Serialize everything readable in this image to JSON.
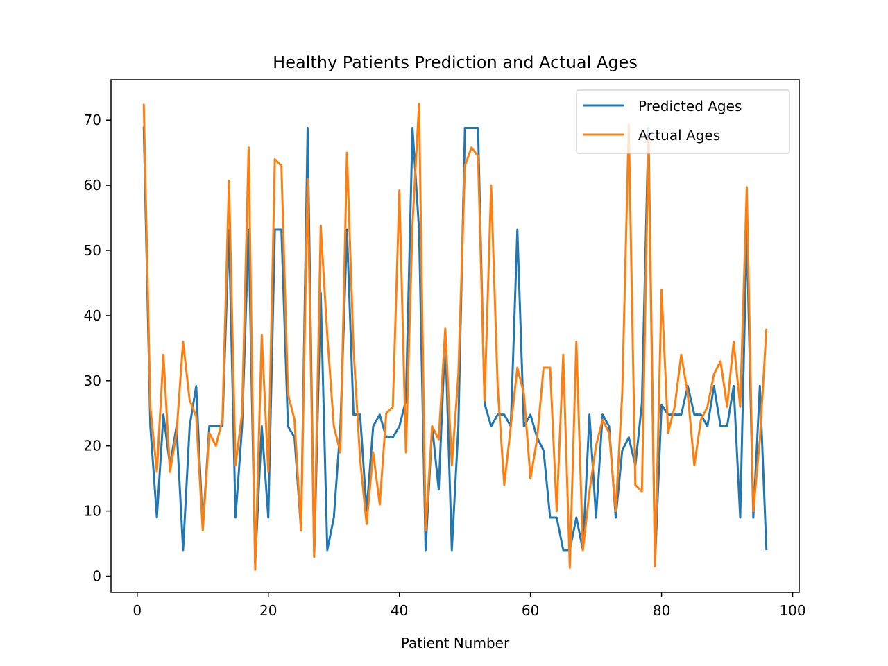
{
  "chart_data": {
    "type": "line",
    "title": "Healthy Patients Prediction and Actual Ages",
    "xlabel": "Patient Number",
    "ylabel": "",
    "xlim": [
      -4,
      101
    ],
    "ylim": [
      -2.5,
      76.2
    ],
    "xticks": [
      0,
      20,
      40,
      60,
      80,
      100
    ],
    "yticks": [
      0,
      10,
      20,
      30,
      40,
      50,
      60,
      70
    ],
    "grid": false,
    "legend_position": "top-right",
    "series": [
      {
        "name": "Predicted Ages",
        "color": "#1f77b4",
        "x": [
          1,
          2,
          3,
          4,
          5,
          6,
          7,
          8,
          9,
          10,
          11,
          12,
          13,
          14,
          15,
          16,
          17,
          18,
          19,
          20,
          21,
          22,
          23,
          24,
          25,
          26,
          27,
          28,
          29,
          30,
          31,
          32,
          33,
          34,
          35,
          36,
          37,
          38,
          39,
          40,
          41,
          42,
          43,
          44,
          45,
          46,
          47,
          48,
          49,
          50,
          51,
          52,
          53,
          54,
          55,
          56,
          57,
          58,
          59,
          60,
          61,
          62,
          63,
          64,
          65,
          66,
          67,
          68,
          69,
          70,
          71,
          72,
          73,
          74,
          75,
          76,
          77,
          78,
          79,
          80,
          81,
          82,
          83,
          84,
          85,
          86,
          87,
          88,
          89,
          90,
          91,
          92,
          93,
          94,
          95,
          96
        ],
        "y": [
          69,
          23,
          9,
          24.8,
          17,
          23,
          4,
          23,
          29.2,
          7.2,
          23,
          23,
          23,
          53.2,
          9,
          23,
          53.2,
          2,
          23,
          9,
          53.2,
          53.2,
          23,
          21.3,
          7,
          68.8,
          3,
          43.5,
          4,
          9,
          23,
          53.2,
          24.8,
          24.8,
          10,
          23,
          24.8,
          21.3,
          21.3,
          23,
          27,
          68.8,
          53.2,
          4,
          23,
          13.3,
          37,
          4,
          23,
          68.8,
          68.8,
          68.8,
          26.5,
          23,
          24.8,
          24.8,
          23,
          53.2,
          23,
          24.8,
          21.3,
          19.3,
          9,
          9,
          4,
          4,
          9,
          4,
          24.8,
          9,
          24.8,
          23,
          9,
          19.3,
          21.3,
          17,
          26.5,
          68.8,
          2,
          26.3,
          24.8,
          24.8,
          24.8,
          29.2,
          24.8,
          24.8,
          23,
          29.2,
          23,
          23,
          29.2,
          9,
          53.2,
          9,
          29.2,
          4
        ]
      },
      {
        "name": "Actual Ages",
        "color": "#ff7f0e",
        "x": [
          1,
          2,
          3,
          4,
          5,
          6,
          7,
          8,
          9,
          10,
          11,
          12,
          13,
          14,
          15,
          16,
          17,
          18,
          19,
          20,
          21,
          22,
          23,
          24,
          25,
          26,
          27,
          28,
          29,
          30,
          31,
          32,
          33,
          34,
          35,
          36,
          37,
          38,
          39,
          40,
          41,
          42,
          43,
          44,
          45,
          46,
          47,
          48,
          49,
          50,
          51,
          52,
          53,
          54,
          55,
          56,
          57,
          58,
          59,
          60,
          61,
          62,
          63,
          64,
          65,
          66,
          67,
          68,
          69,
          70,
          71,
          72,
          73,
          74,
          75,
          76,
          77,
          78,
          79,
          80,
          81,
          82,
          83,
          84,
          85,
          86,
          87,
          88,
          89,
          90,
          91,
          92,
          93,
          94,
          95,
          96
        ],
        "y": [
          72.5,
          26,
          16,
          34,
          16,
          22,
          36,
          27,
          24.5,
          7,
          22,
          20,
          24,
          60.7,
          17,
          25,
          65.8,
          1,
          37,
          16,
          64,
          63,
          28,
          24,
          7,
          61,
          3,
          53.8,
          37,
          23,
          19,
          65,
          35,
          18,
          8,
          19,
          11,
          25,
          26,
          59.2,
          19,
          54,
          72.5,
          7,
          23,
          21,
          38,
          17,
          31,
          63,
          65.8,
          64.5,
          27,
          60,
          29,
          14,
          23,
          32,
          28,
          15,
          21,
          32,
          32,
          10,
          34,
          1.3,
          36,
          4,
          13,
          20,
          24,
          22,
          10,
          28,
          69.3,
          14,
          13,
          67,
          1.5,
          44,
          22,
          26,
          34,
          28,
          17,
          24,
          26,
          31,
          33,
          26,
          36,
          26,
          59.7,
          10,
          21,
          38
        ]
      }
    ]
  }
}
